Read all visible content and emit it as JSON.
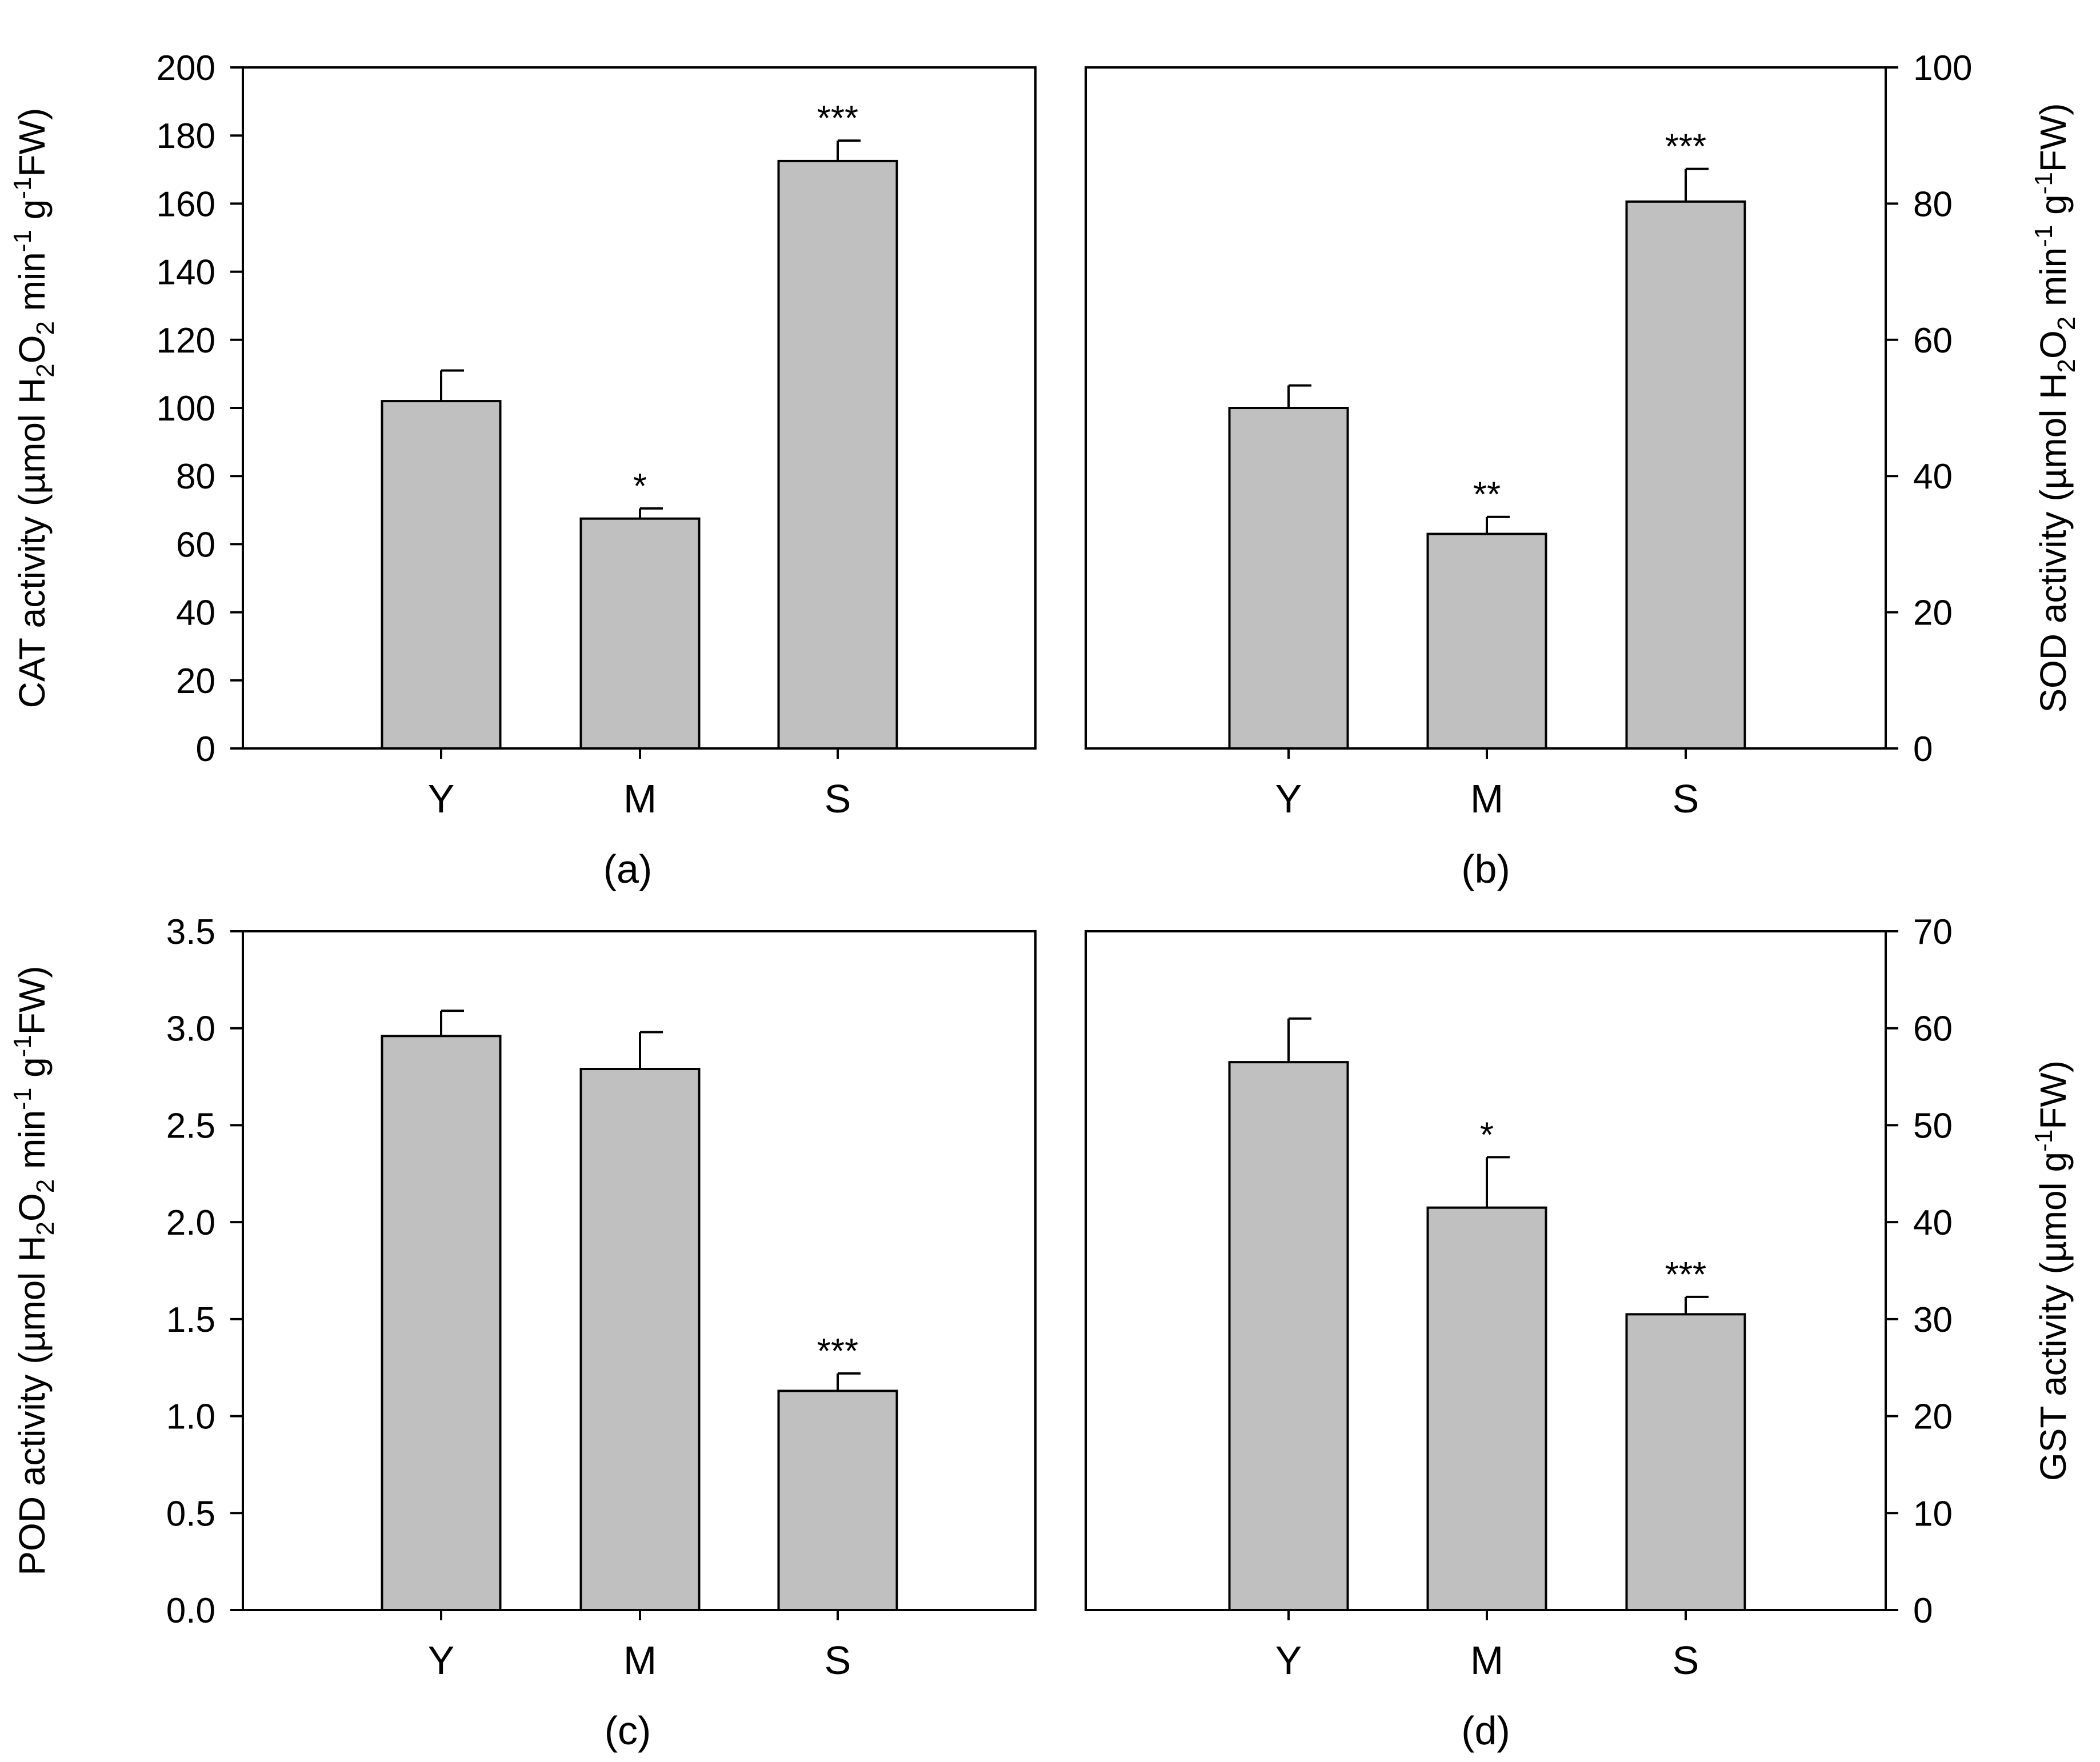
{
  "colors": {
    "bar_fill": "#c0c0c0",
    "stroke": "#000000",
    "background": "#ffffff"
  },
  "chart_data": [
    {
      "type": "bar",
      "panel_label": "(a)",
      "ylabel": {
        "pre": "CAT activity (µmol H",
        "s1": "2",
        "mid": "O",
        "s2": "2",
        "unit": " min",
        "e1": "-1",
        "g": " g",
        "e2": "-1",
        "post": "FW)"
      },
      "y_axis_side": "left",
      "ylim": [
        0,
        200
      ],
      "yticks": [
        0,
        20,
        40,
        60,
        80,
        100,
        120,
        140,
        160,
        180,
        200
      ],
      "ytick_labels": [
        "0",
        "20",
        "40",
        "60",
        "80",
        "100",
        "120",
        "140",
        "160",
        "180",
        "200"
      ],
      "categories": [
        "Y",
        "M",
        "S"
      ],
      "values": [
        102,
        67.5,
        172.5
      ],
      "errors": [
        9,
        3,
        6
      ],
      "significance": [
        "",
        "*",
        "***"
      ]
    },
    {
      "type": "bar",
      "panel_label": "(b)",
      "ylabel": {
        "pre": "SOD activity (µmol H",
        "s1": "2",
        "mid": "O",
        "s2": "2",
        "unit": " min",
        "e1": "-1",
        "g": " g",
        "e2": "-1",
        "post": "FW)"
      },
      "y_axis_side": "right",
      "ylim": [
        0,
        100
      ],
      "yticks": [
        0,
        20,
        40,
        60,
        80,
        100
      ],
      "ytick_labels": [
        "0",
        "20",
        "40",
        "60",
        "80",
        "100"
      ],
      "categories": [
        "Y",
        "M",
        "S"
      ],
      "values": [
        50,
        31.5,
        80.3
      ],
      "errors": [
        3.3,
        2.5,
        4.8
      ],
      "significance": [
        "",
        "**",
        "***"
      ]
    },
    {
      "type": "bar",
      "panel_label": "(c)",
      "ylabel": {
        "pre": "POD activity (µmol H",
        "s1": "2",
        "mid": "O",
        "s2": "2",
        "unit": " min",
        "e1": "-1",
        "g": " g",
        "e2": "-1",
        "post": "FW)"
      },
      "y_axis_side": "left",
      "ylim": [
        0,
        3.5
      ],
      "yticks": [
        0,
        0.5,
        1,
        1.5,
        2,
        2.5,
        3,
        3.5
      ],
      "ytick_labels": [
        "0.0",
        "0.5",
        "1.0",
        "1.5",
        "2.0",
        "2.5",
        "3.0",
        "3.5"
      ],
      "categories": [
        "Y",
        "M",
        "S"
      ],
      "values": [
        2.96,
        2.79,
        1.13
      ],
      "errors": [
        0.13,
        0.19,
        0.09
      ],
      "significance": [
        "",
        "",
        "***"
      ]
    },
    {
      "type": "bar",
      "panel_label": "(d)",
      "ylabel": {
        "pre": "GST activity (µmol g",
        "e1": "-1",
        "post": "FW)"
      },
      "y_axis_side": "right",
      "ylim": [
        0,
        70
      ],
      "yticks": [
        0,
        10,
        20,
        30,
        40,
        50,
        60,
        70
      ],
      "ytick_labels": [
        "0",
        "10",
        "20",
        "30",
        "40",
        "50",
        "60",
        "70"
      ],
      "categories": [
        "Y",
        "M",
        "S"
      ],
      "values": [
        56.5,
        41.5,
        30.5
      ],
      "errors": [
        4.5,
        5.2,
        1.8
      ],
      "significance": [
        "",
        "*",
        "***"
      ]
    }
  ]
}
